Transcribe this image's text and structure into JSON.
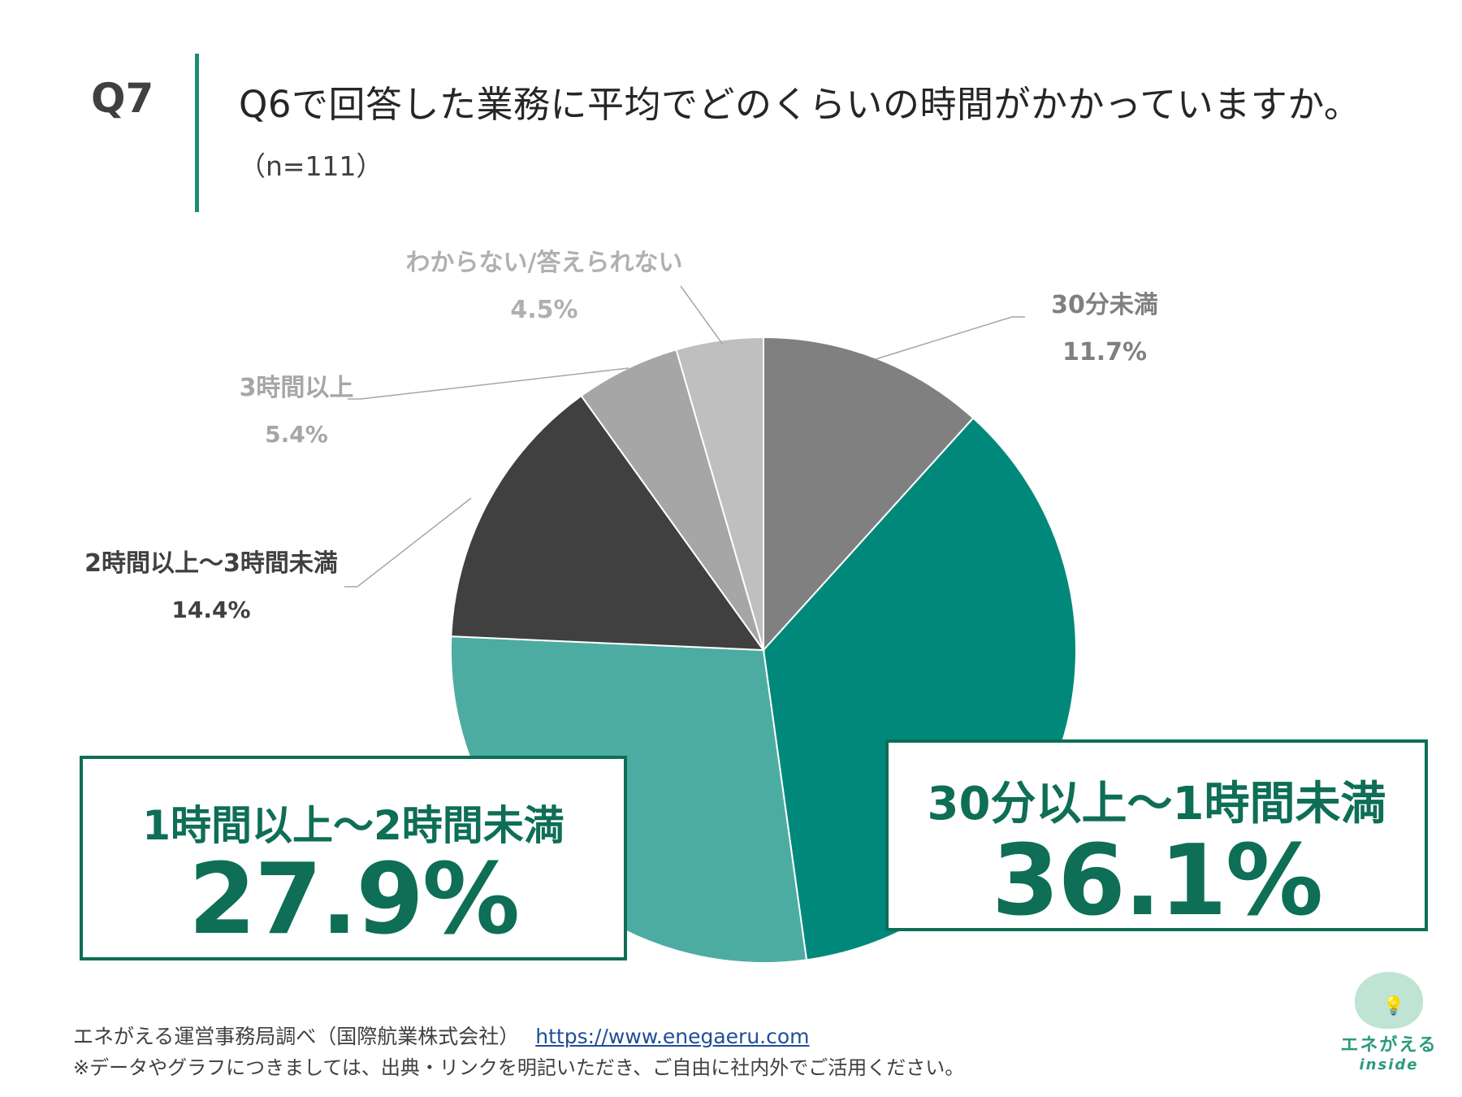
{
  "header": {
    "qnum": "Q7",
    "title": "Q6で回答した業務に平均でどのくらいの時間がかかっていますか。",
    "n": "（n=111）"
  },
  "chart_data": {
    "type": "pie",
    "title": "Q6で回答した業務に平均でどのくらいの時間がかかっていますか。",
    "start": "12 o'clock, clockwise",
    "slices": [
      {
        "label": "30分未満",
        "value": 11.7,
        "display": "11.7%",
        "color": "#808080"
      },
      {
        "label": "30分以上～1時間未満",
        "value": 36.1,
        "display": "36.1%",
        "color": "#00897B"
      },
      {
        "label": "1時間以上～2時間未満",
        "value": 27.9,
        "display": "27.9%",
        "color": "#4DACA2"
      },
      {
        "label": "2時間以上～3時間未満",
        "value": 14.4,
        "display": "14.4%",
        "color": "#404040"
      },
      {
        "label": "3時間以上",
        "value": 5.4,
        "display": "5.4%",
        "color": "#A6A6A6"
      },
      {
        "label": "わからない/答えられない",
        "value": 4.5,
        "display": "4.5%",
        "color": "#BFBFBF"
      }
    ]
  },
  "footer": {
    "source": "エネがえる運営事務局調べ（国際航業株式会社）",
    "url": "https://www.enegaeru.com",
    "note": "※データやグラフにつきましては、出典・リンクを明記いただき、ご自由に社内外でご活用ください。"
  },
  "logo": {
    "name": "エネがえる",
    "sub": "inside"
  }
}
